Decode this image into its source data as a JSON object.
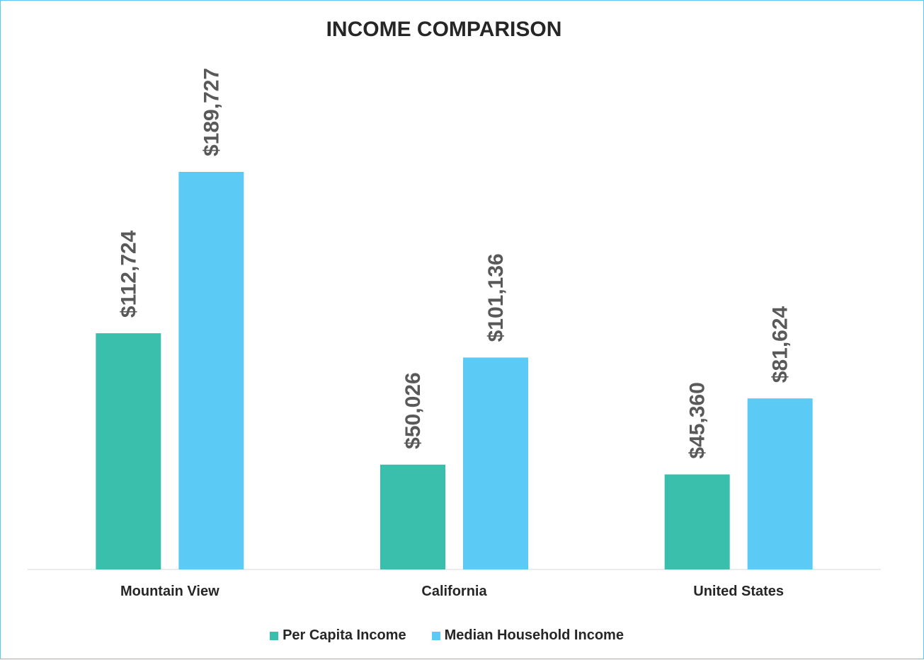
{
  "colors": {
    "per_capita": "#3bbfad",
    "median_household": "#5bcbf5",
    "axis": "#d9d9d9",
    "label": "#595959"
  },
  "chart_data": {
    "type": "bar",
    "title": "INCOME COMPARISON",
    "categories": [
      "Mountain View",
      "California",
      "United States"
    ],
    "series": [
      {
        "name": "Per Capita Income",
        "values": [
          112724,
          50026,
          45360
        ],
        "labels": [
          "$112,724",
          "$50,026",
          "$45,360"
        ]
      },
      {
        "name": "Median Household Income",
        "values": [
          189727,
          101136,
          81624
        ],
        "labels": [
          "$189,727",
          "$101,136",
          "$81,624"
        ]
      }
    ],
    "xlabel": "",
    "ylabel": "",
    "ylim": [
      0,
      200000
    ],
    "grid": false,
    "legend": "bottom"
  }
}
